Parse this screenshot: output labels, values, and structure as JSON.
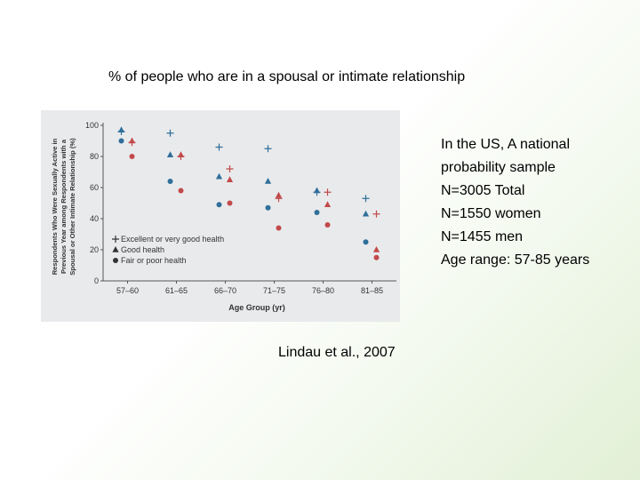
{
  "slide": {
    "title": "% of people who are in a spousal or intimate relationship",
    "info_lines": [
      "In the US, A national",
      "probability sample",
      "N=3005 Total",
      "N=1550 women",
      "N=1455 men",
      "Age range: 57-85 years"
    ],
    "citation": "Lindau et al., 2007"
  },
  "chart_data": {
    "type": "scatter",
    "xlabel": "Age Group (yr)",
    "ylabel": "Respondents Who Were Sexually Active in Previous Year among Respondents with a Spousal or Other Intimate Relationship (%)",
    "categories": [
      "57–60",
      "61–65",
      "66–70",
      "71–75",
      "76–80",
      "81–85"
    ],
    "ylim": [
      0,
      100
    ],
    "y_ticks": [
      0,
      20,
      40,
      60,
      80,
      100
    ],
    "legend_position": "bottom-left",
    "legend_labels": [
      "Excellent or very good health",
      "Good health",
      "Fair or poor health"
    ],
    "colors": {
      "blue": "#2f6f9a",
      "red": "#c24a4a",
      "background": "#e9eaec"
    },
    "series": [
      {
        "name": "Excellent or very good health",
        "marker": "plus",
        "men": [
          96,
          95,
          86,
          85,
          57,
          53
        ],
        "women": [
          89,
          80,
          72,
          53,
          57,
          43
        ]
      },
      {
        "name": "Good health",
        "marker": "triangle",
        "men": [
          97,
          81,
          67,
          64,
          58,
          43
        ],
        "women": [
          90,
          81,
          65,
          55,
          49,
          20
        ]
      },
      {
        "name": "Fair or poor health",
        "marker": "circle",
        "men": [
          90,
          64,
          49,
          47,
          44,
          25
        ],
        "women": [
          80,
          58,
          50,
          34,
          36,
          15
        ]
      }
    ]
  }
}
